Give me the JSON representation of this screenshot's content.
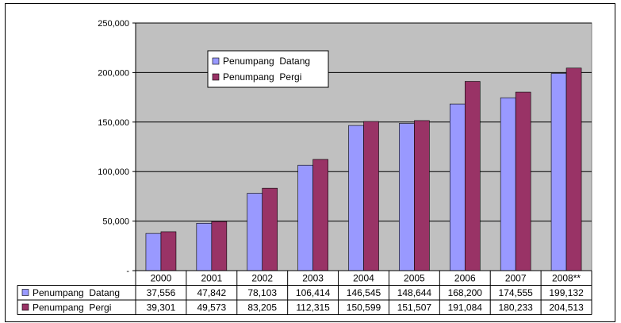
{
  "chart_data": {
    "type": "bar",
    "title": "",
    "xlabel": "",
    "ylabel": "",
    "ylim": [
      0,
      250000
    ],
    "yticks": [
      "-",
      "50,000",
      "100,000",
      "150,000",
      "200,000",
      "250,000"
    ],
    "categories": [
      "2000",
      "2001",
      "2002",
      "2003",
      "2004",
      "2005",
      "2006",
      "2007",
      "2008**"
    ],
    "grid": true,
    "legend_position": "top-left inside plot",
    "series": [
      {
        "name": "Penumpang  Datang",
        "color": "#9999ff",
        "values": [
          37556,
          47842,
          78103,
          106414,
          146545,
          148644,
          168200,
          174555,
          199132
        ],
        "labels": [
          "37,556",
          "47,842",
          "78,103",
          "106,414",
          "146,545",
          "148,644",
          "168,200",
          "174,555",
          "199,132"
        ]
      },
      {
        "name": "Penumpang  Pergi",
        "color": "#993366",
        "values": [
          39301,
          49573,
          83205,
          112315,
          150599,
          151507,
          191084,
          180233,
          204513
        ],
        "labels": [
          "39,301",
          "49,573",
          "83,205",
          "112,315",
          "150,599",
          "151,507",
          "191,084",
          "180,233",
          "204,513"
        ]
      }
    ],
    "plot_background": "#c0c0c0"
  }
}
